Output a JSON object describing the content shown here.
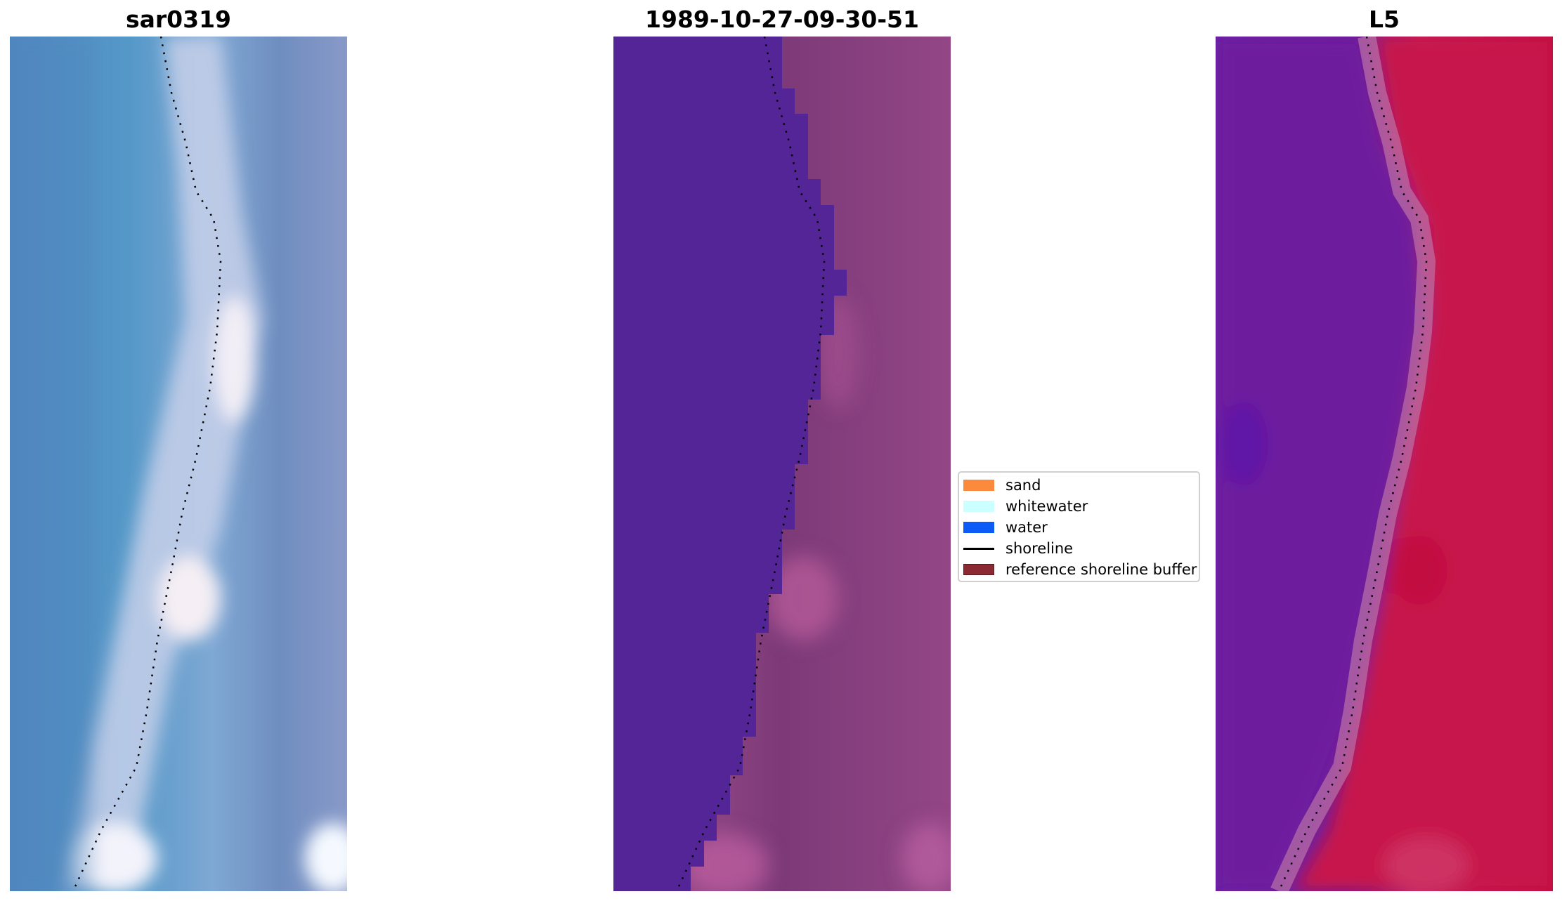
{
  "panels": [
    {
      "title": "sar0319"
    },
    {
      "title": "1989-10-27-09-30-51"
    },
    {
      "title": "L5"
    }
  ],
  "legend": {
    "items": [
      {
        "label": "sand",
        "color": "#fb8a3c",
        "kind": "patch"
      },
      {
        "label": "whitewater",
        "color": "#ccffff",
        "kind": "patch"
      },
      {
        "label": "water",
        "color": "#0b5cf6",
        "kind": "patch"
      },
      {
        "label": "shoreline",
        "color": "#000000",
        "kind": "line"
      },
      {
        "label": "reference shoreline buffer",
        "color": "#8b2a32",
        "kind": "patch"
      }
    ]
  },
  "colors": {
    "rgb_water": "#4f8bc2",
    "rgb_surf": "#dfe2f0",
    "classified_water": "#532596",
    "classified_land": "#8a3c7e",
    "mndwi_water": "#6a1a9e",
    "mndwi_land": "#c21e52"
  }
}
